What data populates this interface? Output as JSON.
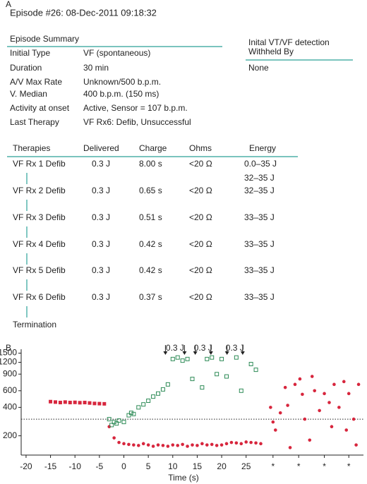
{
  "panel_a": {
    "label": "A",
    "header": "Episode #26: 08-Dec-2011 09:18:32",
    "summary": {
      "title": "Episode Summary",
      "rows": [
        [
          "Initial Type",
          "VF (spontaneous)"
        ],
        [
          "Duration",
          "30 min"
        ],
        [
          "A/V Max Rate",
          "Unknown/500 b.p.m."
        ],
        [
          "V. Median",
          "400 b.p.m. (150 ms)"
        ],
        [
          "Activity at onset",
          "Active, Sensor = 107 b.p.m."
        ],
        [
          "Last Therapy",
          "VF Rx6: Defib, Unsuccessful"
        ]
      ]
    },
    "detection": {
      "title_lines": [
        "Inital VT/VF detection",
        "Withheld By"
      ],
      "value": "None"
    },
    "therapies": {
      "headers": [
        "Therapies",
        "Delivered",
        "Charge",
        "Ohms",
        "Energy"
      ],
      "rows": [
        [
          "VF Rx 1 Defib",
          "0.3 J",
          "8.00 s",
          "<20 Ω",
          "0.0–35 J"
        ],
        [
          "VF Rx 2 Defib",
          "0.3 J",
          "0.65 s",
          "<20 Ω",
          "32–35 J"
        ],
        [
          "VF Rx 3 Defib",
          "0.3 J",
          "0.51 s",
          "<20 Ω",
          "33–35 J"
        ],
        [
          "VF Rx 4 Defib",
          "0.3 J",
          "0.42 s",
          "<20 Ω",
          "33–35 J"
        ],
        [
          "VF Rx 5 Defib",
          "0.3 J",
          "0.42 s",
          "<20 Ω",
          "33–35 J"
        ],
        [
          "VF Rx 6 Defib",
          "0.3 J",
          "0.37 s",
          "<20 Ω",
          "33–35 J"
        ]
      ],
      "extra_energy": "32–35 J",
      "termination": "Termination"
    }
  },
  "chart_data": {
    "type": "scatter",
    "panel_label": "B",
    "xlabel": "Time (s)",
    "xlim": [
      -21,
      49
    ],
    "xticks": [
      -20,
      -15,
      -10,
      -5,
      0,
      5,
      10,
      15,
      20,
      25,
      {
        "value": 30.5,
        "label": "*"
      },
      {
        "value": 35.75,
        "label": "*"
      },
      {
        "value": 41,
        "label": "*"
      },
      {
        "value": 46,
        "label": "*"
      }
    ],
    "ylim": [
      125,
      1650
    ],
    "yticks": [
      200,
      400,
      600,
      900,
      1200,
      1500
    ],
    "log_y": true,
    "reference_line": 300,
    "shock_times": [
      8.5,
      12.4,
      14.6,
      17.8,
      21.1,
      24.3
    ],
    "annotations": [
      "0.3 J",
      "0.3 J",
      "0.3 J"
    ],
    "series": [
      {
        "color": "#d7263d",
        "marker": "filled-square",
        "x": [
          -15,
          -14,
          -13,
          -12,
          -11,
          -10,
          -9,
          -8,
          -7,
          -6,
          -5,
          -4
        ],
        "values": [
          460,
          455,
          450,
          455,
          450,
          452,
          448,
          450,
          445,
          440,
          438,
          436
        ]
      },
      {
        "color": "#d7263d",
        "marker": "circle",
        "x": [
          -3,
          -2,
          -1,
          0,
          1,
          2,
          3,
          4,
          5,
          6,
          7,
          8,
          9,
          10,
          11,
          12,
          13,
          14,
          15,
          16,
          17,
          18,
          19,
          20,
          21,
          22,
          23,
          24,
          25,
          26,
          27,
          28,
          30,
          30.5,
          31,
          32,
          33,
          33.5,
          34,
          35,
          36,
          36.5,
          37,
          38,
          38.5,
          39,
          40,
          41,
          42,
          42.5,
          43,
          44,
          45,
          45.5,
          46,
          47,
          47.5,
          48
        ],
        "values": [
          250,
          190,
          170,
          165,
          162,
          160,
          158,
          165,
          160,
          155,
          160,
          158,
          155,
          160,
          158,
          162,
          155,
          160,
          158,
          165,
          160,
          162,
          158,
          160,
          165,
          170,
          168,
          165,
          172,
          170,
          168,
          165,
          400,
          280,
          230,
          350,
          650,
          420,
          150,
          700,
          800,
          550,
          300,
          180,
          850,
          600,
          370,
          560,
          450,
          250,
          700,
          400,
          750,
          230,
          560,
          300,
          160,
          700
        ]
      },
      {
        "color": "#2e8b57",
        "marker": "open-square",
        "x": [
          -3,
          -2.5,
          -2,
          -1.5,
          -1,
          0,
          1,
          1.5,
          2,
          3,
          4,
          5,
          6,
          7,
          8,
          9,
          10,
          11,
          12,
          13,
          14,
          16,
          17,
          18,
          19,
          20,
          21,
          23,
          24,
          26,
          27
        ],
        "values": [
          300,
          260,
          280,
          270,
          290,
          280,
          330,
          350,
          340,
          400,
          430,
          470,
          520,
          560,
          620,
          700,
          1300,
          1350,
          1250,
          1300,
          800,
          650,
          1300,
          1350,
          900,
          1300,
          850,
          1350,
          600,
          1150,
          1000
        ]
      }
    ]
  }
}
